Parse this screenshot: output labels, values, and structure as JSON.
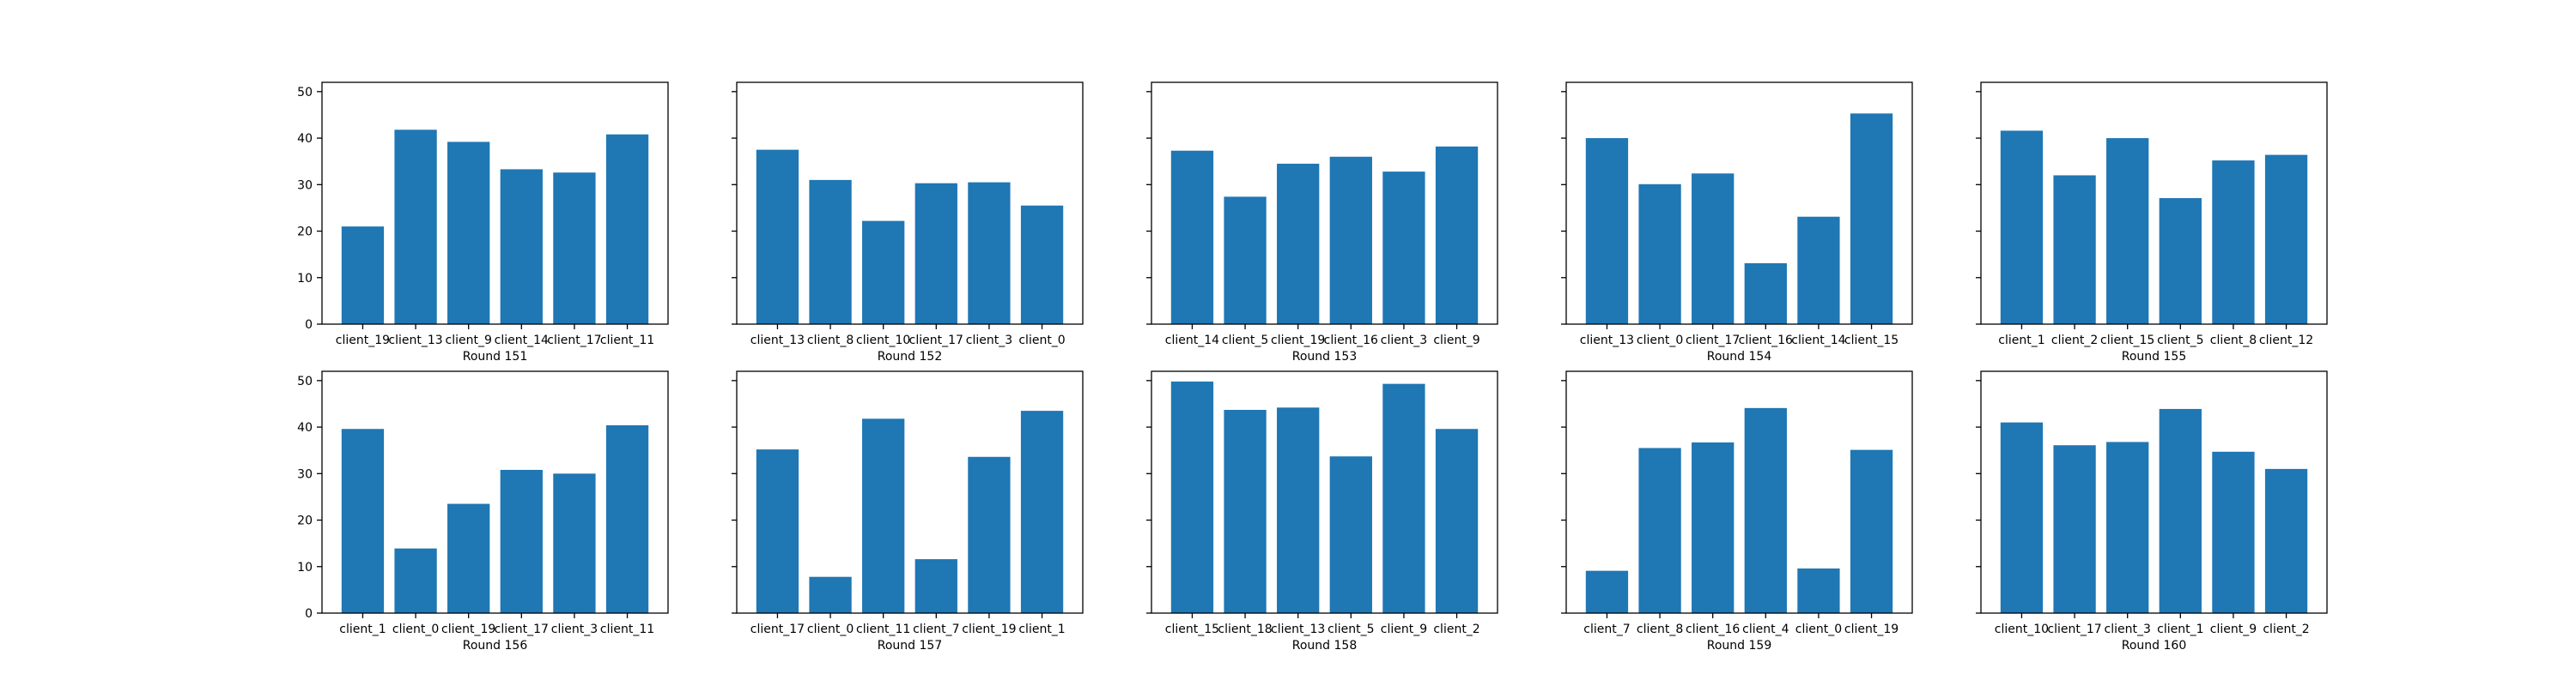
{
  "chart_data": [
    {
      "type": "bar",
      "xlabel": "Round 151",
      "ylim": [
        0,
        52
      ],
      "yticks": [
        0,
        10,
        20,
        30,
        40,
        50
      ],
      "categories": [
        "client_19",
        "client_13",
        "client_9",
        "client_14",
        "client_17",
        "client_11"
      ],
      "values": [
        21.0,
        41.8,
        39.2,
        33.3,
        32.6,
        40.8
      ]
    },
    {
      "type": "bar",
      "xlabel": "Round 152",
      "ylim": [
        0,
        52
      ],
      "yticks": [
        0,
        10,
        20,
        30,
        40,
        50
      ],
      "categories": [
        "client_13",
        "client_8",
        "client_10",
        "client_17",
        "client_3",
        "client_0"
      ],
      "values": [
        37.5,
        31.0,
        22.2,
        30.3,
        30.5,
        25.5
      ]
    },
    {
      "type": "bar",
      "xlabel": "Round 153",
      "ylim": [
        0,
        52
      ],
      "yticks": [
        0,
        10,
        20,
        30,
        40,
        50
      ],
      "categories": [
        "client_14",
        "client_5",
        "client_19",
        "client_16",
        "client_3",
        "client_9"
      ],
      "values": [
        37.3,
        27.4,
        34.5,
        36.0,
        32.8,
        38.2
      ]
    },
    {
      "type": "bar",
      "xlabel": "Round 154",
      "ylim": [
        0,
        52
      ],
      "yticks": [
        0,
        10,
        20,
        30,
        40,
        50
      ],
      "categories": [
        "client_13",
        "client_0",
        "client_17",
        "client_16",
        "client_14",
        "client_15"
      ],
      "values": [
        40.0,
        30.1,
        32.4,
        13.1,
        23.1,
        45.3
      ]
    },
    {
      "type": "bar",
      "xlabel": "Round 155",
      "ylim": [
        0,
        52
      ],
      "yticks": [
        0,
        10,
        20,
        30,
        40,
        50
      ],
      "categories": [
        "client_1",
        "client_2",
        "client_15",
        "client_5",
        "client_8",
        "client_12"
      ],
      "values": [
        41.6,
        32.0,
        40.0,
        27.1,
        35.2,
        36.4
      ]
    },
    {
      "type": "bar",
      "xlabel": "Round 156",
      "ylim": [
        0,
        52
      ],
      "yticks": [
        0,
        10,
        20,
        30,
        40,
        50
      ],
      "categories": [
        "client_1",
        "client_0",
        "client_19",
        "client_17",
        "client_3",
        "client_11"
      ],
      "values": [
        39.6,
        13.9,
        23.5,
        30.8,
        30.0,
        40.4
      ]
    },
    {
      "type": "bar",
      "xlabel": "Round 157",
      "ylim": [
        0,
        52
      ],
      "yticks": [
        0,
        10,
        20,
        30,
        40,
        50
      ],
      "categories": [
        "client_17",
        "client_0",
        "client_11",
        "client_7",
        "client_19",
        "client_1"
      ],
      "values": [
        35.2,
        7.8,
        41.8,
        11.6,
        33.6,
        43.5
      ]
    },
    {
      "type": "bar",
      "xlabel": "Round 158",
      "ylim": [
        0,
        52
      ],
      "yticks": [
        0,
        10,
        20,
        30,
        40,
        50
      ],
      "categories": [
        "client_15",
        "client_18",
        "client_13",
        "client_5",
        "client_9",
        "client_2"
      ],
      "values": [
        49.8,
        43.7,
        44.2,
        33.7,
        49.3,
        39.6
      ]
    },
    {
      "type": "bar",
      "xlabel": "Round 159",
      "ylim": [
        0,
        52
      ],
      "yticks": [
        0,
        10,
        20,
        30,
        40,
        50
      ],
      "categories": [
        "client_7",
        "client_8",
        "client_16",
        "client_4",
        "client_0",
        "client_19"
      ],
      "values": [
        9.1,
        35.5,
        36.7,
        44.1,
        9.6,
        35.1
      ]
    },
    {
      "type": "bar",
      "xlabel": "Round 160",
      "ylim": [
        0,
        52
      ],
      "yticks": [
        0,
        10,
        20,
        30,
        40,
        50
      ],
      "categories": [
        "client_10",
        "client_17",
        "client_3",
        "client_1",
        "client_9",
        "client_2"
      ],
      "values": [
        41.0,
        36.1,
        36.8,
        43.9,
        34.7,
        31.0
      ]
    }
  ],
  "colors": {
    "bar": "#1f77b4",
    "axis": "#000000",
    "background": "#ffffff"
  }
}
